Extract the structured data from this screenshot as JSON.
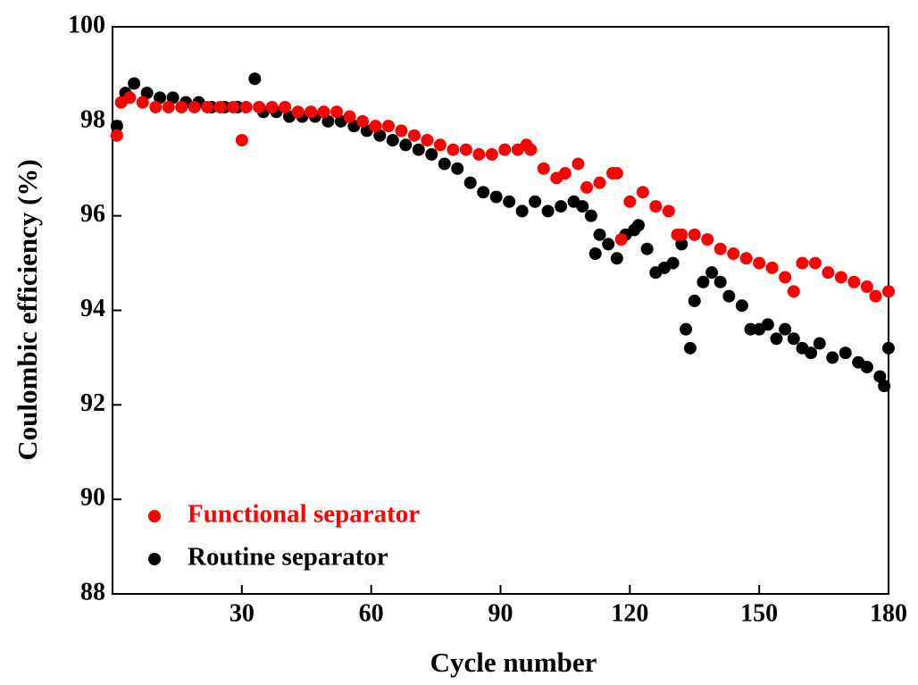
{
  "chart_data": {
    "type": "scatter",
    "x_label": "Cycle number",
    "y_label": "Coulombic efficiency (%)",
    "xlim": [
      0,
      180
    ],
    "xticks": [
      30,
      60,
      90,
      120,
      150,
      180
    ],
    "ylim": [
      88,
      100
    ],
    "yticks": [
      88,
      90,
      92,
      94,
      96,
      98,
      100
    ],
    "legend": "lower left",
    "series": [
      {
        "name": "Routine separator",
        "color": "#000000",
        "x": [
          1,
          3,
          5,
          8,
          11,
          14,
          17,
          20,
          23,
          26,
          29,
          33,
          35,
          38,
          41,
          44,
          47,
          50,
          53,
          56,
          59,
          62,
          65,
          68,
          71,
          74,
          77,
          80,
          83,
          86,
          89,
          92,
          95,
          98,
          101,
          104,
          107,
          109,
          111,
          112,
          113,
          115,
          117,
          119,
          121,
          122,
          124,
          126,
          128,
          130,
          132,
          133,
          134,
          135,
          137,
          139,
          141,
          143,
          146,
          148,
          150,
          152,
          154,
          156,
          158,
          160,
          162,
          164,
          167,
          170,
          173,
          175,
          178,
          179,
          180
        ],
        "values": [
          97.9,
          98.6,
          98.8,
          98.6,
          98.5,
          98.5,
          98.4,
          98.4,
          98.3,
          98.3,
          98.3,
          98.9,
          98.2,
          98.2,
          98.1,
          98.1,
          98.1,
          98.0,
          98.0,
          97.9,
          97.8,
          97.7,
          97.6,
          97.5,
          97.4,
          97.3,
          97.1,
          97.0,
          96.7,
          96.5,
          96.4,
          96.3,
          96.1,
          96.3,
          96.1,
          96.2,
          96.3,
          96.2,
          96.0,
          95.2,
          95.6,
          95.4,
          95.1,
          95.6,
          95.7,
          95.8,
          95.3,
          94.8,
          94.9,
          95.0,
          95.4,
          93.6,
          93.2,
          94.2,
          94.6,
          94.8,
          94.6,
          94.3,
          94.1,
          93.6,
          93.6,
          93.7,
          93.4,
          93.6,
          93.4,
          93.2,
          93.1,
          93.3,
          93.0,
          93.1,
          92.9,
          92.8,
          92.6,
          92.4,
          93.2
        ]
      },
      {
        "name": "Functional separator",
        "color": "#ff0000",
        "x": [
          1,
          2,
          4,
          7,
          10,
          13,
          16,
          19,
          22,
          25,
          28,
          30,
          31,
          34,
          37,
          40,
          43,
          46,
          49,
          52,
          55,
          58,
          61,
          64,
          67,
          70,
          73,
          76,
          79,
          82,
          85,
          88,
          91,
          94,
          96,
          97,
          100,
          103,
          105,
          108,
          110,
          113,
          116,
          117,
          118,
          120,
          123,
          126,
          129,
          131,
          132,
          135,
          138,
          141,
          144,
          147,
          150,
          153,
          156,
          158,
          160,
          163,
          166,
          169,
          172,
          175,
          177,
          180
        ],
        "values": [
          97.7,
          98.4,
          98.5,
          98.4,
          98.3,
          98.3,
          98.3,
          98.3,
          98.3,
          98.3,
          98.3,
          97.6,
          98.3,
          98.3,
          98.3,
          98.3,
          98.2,
          98.2,
          98.2,
          98.2,
          98.1,
          98.0,
          97.9,
          97.9,
          97.8,
          97.7,
          97.6,
          97.5,
          97.4,
          97.4,
          97.3,
          97.3,
          97.4,
          97.4,
          97.5,
          97.4,
          97.0,
          96.8,
          96.9,
          97.1,
          96.6,
          96.7,
          96.9,
          96.9,
          95.5,
          96.3,
          96.5,
          96.2,
          96.1,
          95.6,
          95.6,
          95.6,
          95.5,
          95.3,
          95.2,
          95.1,
          95.0,
          94.9,
          94.7,
          94.4,
          95.0,
          95.0,
          94.8,
          94.7,
          94.6,
          94.5,
          94.3,
          94.4
        ]
      }
    ]
  }
}
